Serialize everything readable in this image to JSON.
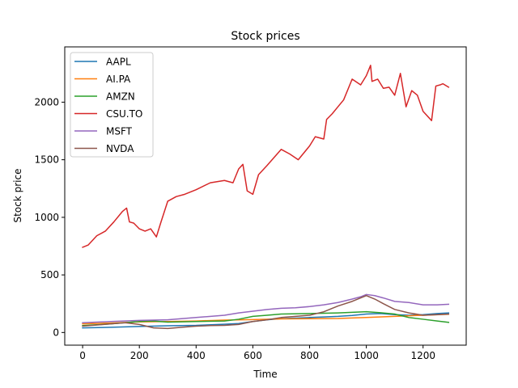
{
  "chart_data": {
    "type": "line",
    "title": "Stock prices",
    "xlabel": "Time",
    "ylabel": "Stock price",
    "xlim": [
      -63,
      1352
    ],
    "ylim": [
      -110,
      2480
    ],
    "xticks": [
      0,
      200,
      400,
      600,
      800,
      1000,
      1200
    ],
    "yticks": [
      0,
      500,
      1000,
      1500,
      2000
    ],
    "grid": false,
    "legend_position": "top-left",
    "series": [
      {
        "name": "AAPL",
        "color": "#1f77b4",
        "x": [
          0,
          100,
          200,
          300,
          400,
          500,
          550,
          600,
          650,
          700,
          750,
          800,
          850,
          900,
          950,
          1000,
          1050,
          1100,
          1150,
          1200,
          1250,
          1290
        ],
        "y": [
          40,
          45,
          52,
          58,
          62,
          72,
          78,
          95,
          110,
          120,
          125,
          130,
          135,
          140,
          148,
          160,
          165,
          155,
          150,
          155,
          165,
          170
        ]
      },
      {
        "name": "AI.PA",
        "color": "#ff7f0e",
        "x": [
          0,
          100,
          200,
          300,
          400,
          500,
          600,
          700,
          800,
          900,
          1000,
          1100,
          1200,
          1290
        ],
        "y": [
          75,
          82,
          92,
          95,
          100,
          108,
          112,
          118,
          120,
          122,
          130,
          140,
          150,
          158
        ]
      },
      {
        "name": "AMZN",
        "color": "#2ca02c",
        "x": [
          0,
          100,
          200,
          250,
          300,
          400,
          500,
          550,
          600,
          650,
          700,
          800,
          900,
          950,
          1000,
          1050,
          1100,
          1150,
          1200,
          1250,
          1290
        ],
        "y": [
          60,
          75,
          95,
          100,
          90,
          95,
          100,
          115,
          140,
          150,
          160,
          165,
          170,
          175,
          180,
          172,
          160,
          130,
          115,
          100,
          88
        ]
      },
      {
        "name": "CSU.TO",
        "color": "#d62728",
        "x": [
          0,
          20,
          50,
          80,
          110,
          140,
          155,
          165,
          180,
          200,
          220,
          240,
          260,
          275,
          300,
          330,
          360,
          400,
          450,
          500,
          530,
          550,
          565,
          580,
          600,
          620,
          650,
          700,
          730,
          760,
          800,
          820,
          850,
          860,
          880,
          900,
          920,
          950,
          980,
          1000,
          1015,
          1020,
          1040,
          1060,
          1080,
          1100,
          1120,
          1140,
          1160,
          1180,
          1200,
          1230,
          1245,
          1260,
          1270,
          1290
        ],
        "y": [
          740,
          760,
          840,
          880,
          960,
          1050,
          1080,
          960,
          950,
          900,
          880,
          900,
          830,
          950,
          1140,
          1180,
          1200,
          1240,
          1300,
          1320,
          1300,
          1420,
          1460,
          1230,
          1200,
          1370,
          1450,
          1590,
          1550,
          1500,
          1620,
          1700,
          1680,
          1850,
          1900,
          1960,
          2020,
          2200,
          2150,
          2230,
          2320,
          2180,
          2200,
          2120,
          2130,
          2060,
          2250,
          1960,
          2100,
          2060,
          1920,
          1840,
          2140,
          2150,
          2160,
          2130
        ]
      },
      {
        "name": "MSFT",
        "color": "#9467bd",
        "x": [
          0,
          100,
          200,
          300,
          400,
          500,
          550,
          600,
          650,
          700,
          750,
          800,
          850,
          900,
          950,
          980,
          1000,
          1030,
          1060,
          1100,
          1150,
          1200,
          1250,
          1290
        ],
        "y": [
          85,
          95,
          105,
          110,
          130,
          150,
          170,
          185,
          200,
          210,
          215,
          225,
          240,
          260,
          290,
          310,
          330,
          320,
          300,
          270,
          260,
          240,
          240,
          245
        ]
      },
      {
        "name": "NVDA",
        "color": "#8c564b",
        "x": [
          0,
          100,
          150,
          200,
          250,
          300,
          350,
          400,
          450,
          500,
          550,
          600,
          650,
          700,
          750,
          800,
          850,
          900,
          950,
          1000,
          1030,
          1060,
          1100,
          1150,
          1200,
          1250,
          1290
        ],
        "y": [
          55,
          75,
          85,
          70,
          40,
          35,
          45,
          55,
          60,
          62,
          70,
          95,
          110,
          130,
          140,
          150,
          180,
          230,
          270,
          320,
          290,
          250,
          200,
          170,
          150,
          155,
          160
        ]
      }
    ]
  }
}
